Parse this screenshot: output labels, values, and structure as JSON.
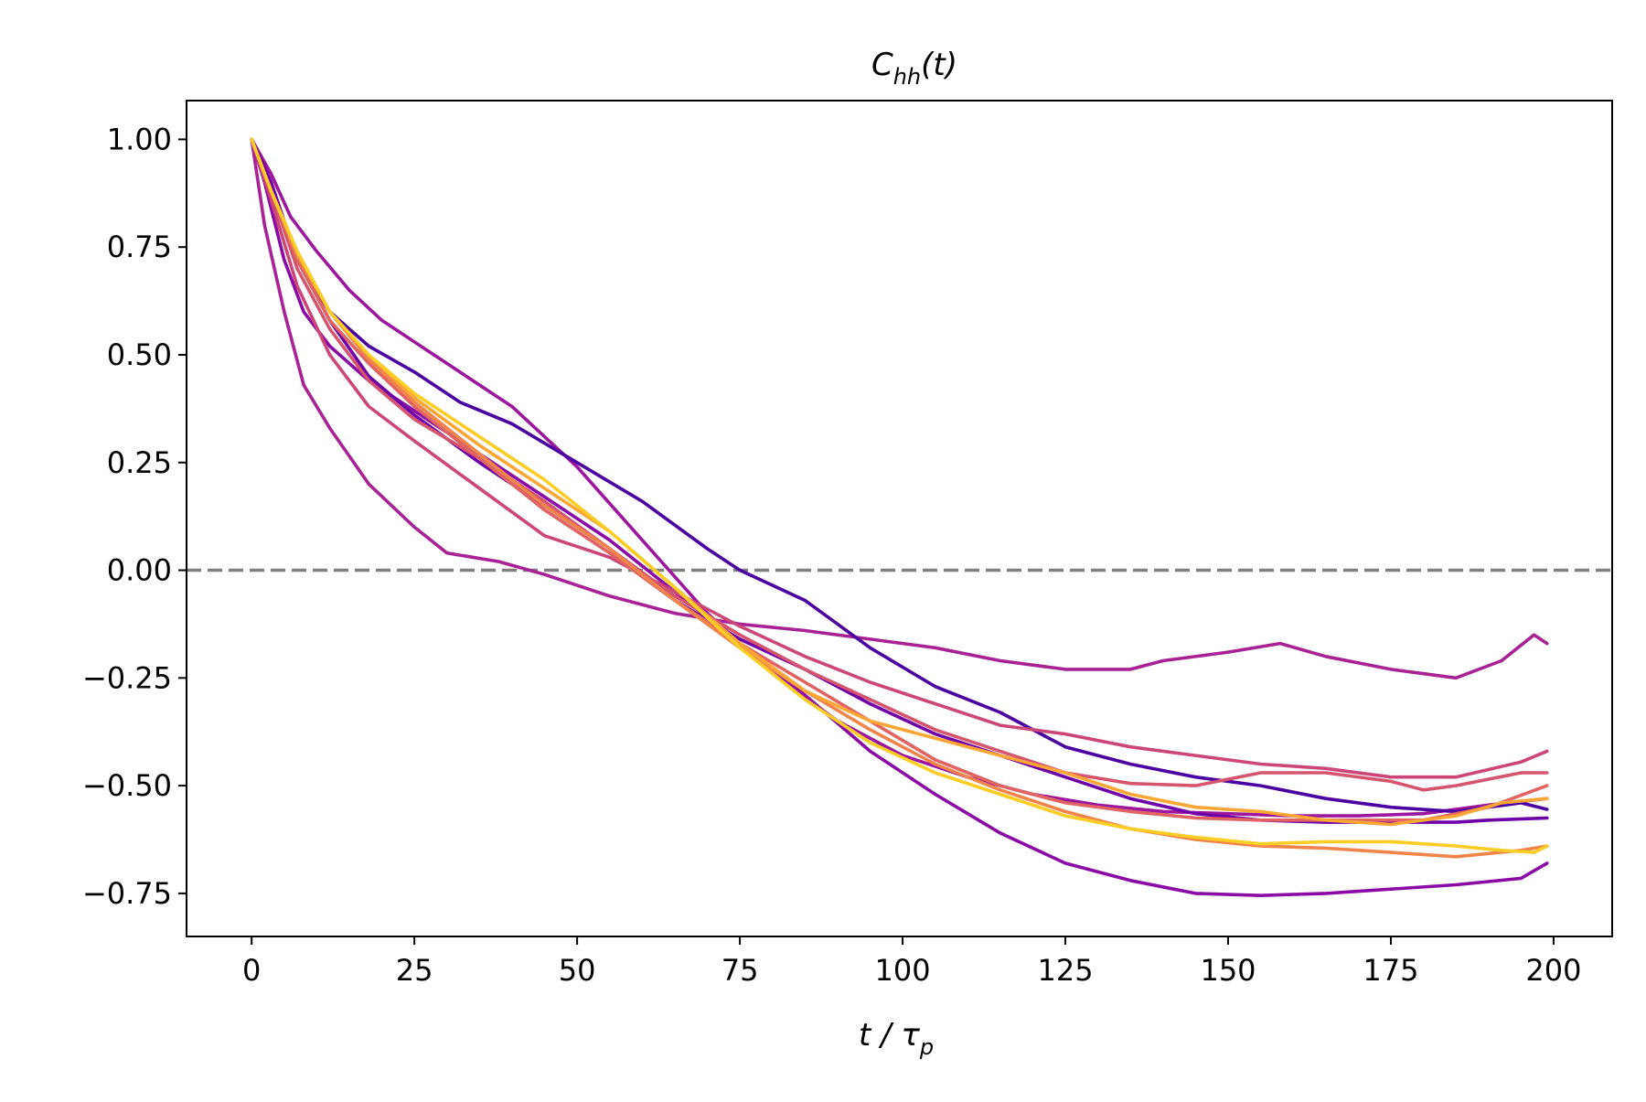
{
  "chart_data": {
    "type": "line",
    "title": {
      "main": "C",
      "sub": "hh",
      "rest": "(t)"
    },
    "xlabel": {
      "main": "t / τ",
      "sub": "p"
    },
    "ylabel": "",
    "xlim": [
      -10,
      209
    ],
    "ylim": [
      -0.85,
      1.09
    ],
    "xticks": [
      0,
      25,
      50,
      75,
      100,
      125,
      150,
      175,
      200
    ],
    "yticks": [
      1.0,
      0.75,
      0.5,
      0.25,
      0.0,
      -0.25,
      -0.5,
      -0.75
    ],
    "ytick_labels": [
      "1.00",
      "0.75",
      "0.50",
      "0.25",
      "0.00",
      "−0.25",
      "−0.50",
      "−0.75"
    ],
    "grid": false,
    "reference_line": {
      "y": 0.0,
      "style": "dashed",
      "color": "#808080"
    },
    "series": [
      {
        "color": "#8b0aa5",
        "points": [
          [
            0,
            1.0
          ],
          [
            2,
            0.9
          ],
          [
            5,
            0.72
          ],
          [
            8,
            0.6
          ],
          [
            12,
            0.52
          ],
          [
            18,
            0.44
          ],
          [
            25,
            0.37
          ],
          [
            35,
            0.27
          ],
          [
            45,
            0.17
          ],
          [
            55,
            0.07
          ],
          [
            65,
            -0.05
          ],
          [
            75,
            -0.17
          ],
          [
            85,
            -0.29
          ],
          [
            95,
            -0.42
          ],
          [
            105,
            -0.52
          ],
          [
            115,
            -0.61
          ],
          [
            125,
            -0.68
          ],
          [
            135,
            -0.72
          ],
          [
            145,
            -0.75
          ],
          [
            155,
            -0.755
          ],
          [
            165,
            -0.75
          ],
          [
            175,
            -0.74
          ],
          [
            185,
            -0.73
          ],
          [
            195,
            -0.715
          ],
          [
            199,
            -0.68
          ]
        ]
      },
      {
        "color": "#a82296",
        "points": [
          [
            0,
            1.0
          ],
          [
            2,
            0.8
          ],
          [
            5,
            0.6
          ],
          [
            8,
            0.43
          ],
          [
            12,
            0.33
          ],
          [
            18,
            0.2
          ],
          [
            25,
            0.1
          ],
          [
            30,
            0.04
          ],
          [
            38,
            0.02
          ],
          [
            45,
            -0.01
          ],
          [
            55,
            -0.06
          ],
          [
            65,
            -0.1
          ],
          [
            75,
            -0.125
          ],
          [
            85,
            -0.14
          ],
          [
            95,
            -0.16
          ],
          [
            105,
            -0.18
          ],
          [
            115,
            -0.21
          ],
          [
            125,
            -0.23
          ],
          [
            135,
            -0.23
          ],
          [
            140,
            -0.21
          ],
          [
            150,
            -0.19
          ],
          [
            158,
            -0.17
          ],
          [
            165,
            -0.2
          ],
          [
            175,
            -0.23
          ],
          [
            185,
            -0.25
          ],
          [
            192,
            -0.21
          ],
          [
            197,
            -0.15
          ],
          [
            199,
            -0.17
          ]
        ]
      },
      {
        "color": "#9c179e",
        "points": [
          [
            0,
            1.0
          ],
          [
            3,
            0.92
          ],
          [
            6,
            0.82
          ],
          [
            10,
            0.74
          ],
          [
            15,
            0.65
          ],
          [
            20,
            0.58
          ],
          [
            30,
            0.48
          ],
          [
            40,
            0.38
          ],
          [
            50,
            0.24
          ],
          [
            60,
            0.07
          ],
          [
            70,
            -0.1
          ],
          [
            80,
            -0.24
          ],
          [
            90,
            -0.35
          ],
          [
            100,
            -0.43
          ],
          [
            110,
            -0.48
          ],
          [
            120,
            -0.52
          ],
          [
            130,
            -0.545
          ],
          [
            140,
            -0.56
          ],
          [
            150,
            -0.565
          ],
          [
            160,
            -0.57
          ],
          [
            170,
            -0.57
          ],
          [
            180,
            -0.565
          ],
          [
            190,
            -0.545
          ],
          [
            199,
            -0.53
          ]
        ]
      },
      {
        "color": "#4c02a1",
        "points": [
          [
            0,
            1.0
          ],
          [
            3,
            0.9
          ],
          [
            7,
            0.72
          ],
          [
            12,
            0.6
          ],
          [
            18,
            0.52
          ],
          [
            25,
            0.46
          ],
          [
            32,
            0.39
          ],
          [
            40,
            0.34
          ],
          [
            50,
            0.25
          ],
          [
            60,
            0.16
          ],
          [
            70,
            0.05
          ],
          [
            75,
            0.0
          ],
          [
            85,
            -0.07
          ],
          [
            95,
            -0.18
          ],
          [
            105,
            -0.27
          ],
          [
            115,
            -0.33
          ],
          [
            125,
            -0.41
          ],
          [
            135,
            -0.45
          ],
          [
            145,
            -0.48
          ],
          [
            155,
            -0.5
          ],
          [
            165,
            -0.53
          ],
          [
            175,
            -0.55
          ],
          [
            185,
            -0.56
          ],
          [
            195,
            -0.54
          ],
          [
            199,
            -0.555
          ]
        ]
      },
      {
        "color": "#6e00a8",
        "points": [
          [
            0,
            1.0
          ],
          [
            3,
            0.9
          ],
          [
            7,
            0.72
          ],
          [
            12,
            0.58
          ],
          [
            18,
            0.45
          ],
          [
            25,
            0.36
          ],
          [
            35,
            0.25
          ],
          [
            45,
            0.15
          ],
          [
            55,
            0.05
          ],
          [
            65,
            -0.07
          ],
          [
            75,
            -0.16
          ],
          [
            85,
            -0.23
          ],
          [
            95,
            -0.31
          ],
          [
            105,
            -0.38
          ],
          [
            115,
            -0.43
          ],
          [
            125,
            -0.48
          ],
          [
            135,
            -0.53
          ],
          [
            145,
            -0.565
          ],
          [
            155,
            -0.58
          ],
          [
            165,
            -0.585
          ],
          [
            175,
            -0.585
          ],
          [
            185,
            -0.585
          ],
          [
            190,
            -0.58
          ],
          [
            199,
            -0.575
          ]
        ]
      },
      {
        "color": "#cc4778",
        "points": [
          [
            0,
            1.0
          ],
          [
            3,
            0.86
          ],
          [
            7,
            0.66
          ],
          [
            12,
            0.5
          ],
          [
            18,
            0.38
          ],
          [
            25,
            0.3
          ],
          [
            35,
            0.19
          ],
          [
            45,
            0.08
          ],
          [
            55,
            0.03
          ],
          [
            65,
            -0.05
          ],
          [
            75,
            -0.13
          ],
          [
            85,
            -0.2
          ],
          [
            95,
            -0.26
          ],
          [
            105,
            -0.31
          ],
          [
            115,
            -0.36
          ],
          [
            125,
            -0.38
          ],
          [
            135,
            -0.41
          ],
          [
            145,
            -0.43
          ],
          [
            155,
            -0.45
          ],
          [
            165,
            -0.46
          ],
          [
            175,
            -0.48
          ],
          [
            185,
            -0.48
          ],
          [
            195,
            -0.445
          ],
          [
            199,
            -0.42
          ]
        ]
      },
      {
        "color": "#d5546e",
        "points": [
          [
            0,
            1.0
          ],
          [
            3,
            0.88
          ],
          [
            7,
            0.7
          ],
          [
            12,
            0.56
          ],
          [
            18,
            0.44
          ],
          [
            25,
            0.35
          ],
          [
            35,
            0.26
          ],
          [
            45,
            0.16
          ],
          [
            55,
            0.05
          ],
          [
            65,
            -0.06
          ],
          [
            75,
            -0.15
          ],
          [
            85,
            -0.23
          ],
          [
            95,
            -0.3
          ],
          [
            105,
            -0.37
          ],
          [
            115,
            -0.42
          ],
          [
            125,
            -0.47
          ],
          [
            135,
            -0.495
          ],
          [
            145,
            -0.5
          ],
          [
            155,
            -0.47
          ],
          [
            165,
            -0.47
          ],
          [
            175,
            -0.49
          ],
          [
            180,
            -0.51
          ],
          [
            185,
            -0.5
          ],
          [
            195,
            -0.47
          ],
          [
            199,
            -0.47
          ]
        ]
      },
      {
        "color": "#e16462",
        "points": [
          [
            0,
            1.0
          ],
          [
            3,
            0.88
          ],
          [
            7,
            0.72
          ],
          [
            12,
            0.58
          ],
          [
            18,
            0.48
          ],
          [
            25,
            0.38
          ],
          [
            35,
            0.26
          ],
          [
            45,
            0.14
          ],
          [
            55,
            0.04
          ],
          [
            65,
            -0.07
          ],
          [
            75,
            -0.17
          ],
          [
            85,
            -0.26
          ],
          [
            95,
            -0.35
          ],
          [
            105,
            -0.44
          ],
          [
            115,
            -0.5
          ],
          [
            125,
            -0.54
          ],
          [
            135,
            -0.56
          ],
          [
            145,
            -0.575
          ],
          [
            155,
            -0.58
          ],
          [
            165,
            -0.58
          ],
          [
            175,
            -0.58
          ],
          [
            180,
            -0.58
          ],
          [
            190,
            -0.55
          ],
          [
            199,
            -0.5
          ]
        ]
      },
      {
        "color": "#f1844b",
        "points": [
          [
            0,
            1.0
          ],
          [
            3,
            0.88
          ],
          [
            7,
            0.73
          ],
          [
            12,
            0.6
          ],
          [
            18,
            0.49
          ],
          [
            25,
            0.39
          ],
          [
            35,
            0.27
          ],
          [
            45,
            0.15
          ],
          [
            55,
            0.05
          ],
          [
            65,
            -0.07
          ],
          [
            75,
            -0.18
          ],
          [
            85,
            -0.28
          ],
          [
            95,
            -0.37
          ],
          [
            105,
            -0.45
          ],
          [
            115,
            -0.51
          ],
          [
            125,
            -0.56
          ],
          [
            135,
            -0.6
          ],
          [
            145,
            -0.625
          ],
          [
            155,
            -0.64
          ],
          [
            165,
            -0.645
          ],
          [
            175,
            -0.655
          ],
          [
            185,
            -0.665
          ],
          [
            195,
            -0.65
          ],
          [
            199,
            -0.64
          ]
        ]
      },
      {
        "color": "#fca636",
        "points": [
          [
            0,
            1.0
          ],
          [
            3,
            0.88
          ],
          [
            7,
            0.74
          ],
          [
            12,
            0.6
          ],
          [
            18,
            0.5
          ],
          [
            25,
            0.4
          ],
          [
            35,
            0.29
          ],
          [
            45,
            0.19
          ],
          [
            55,
            0.09
          ],
          [
            65,
            -0.04
          ],
          [
            75,
            -0.17
          ],
          [
            85,
            -0.28
          ],
          [
            95,
            -0.35
          ],
          [
            105,
            -0.39
          ],
          [
            115,
            -0.43
          ],
          [
            125,
            -0.47
          ],
          [
            135,
            -0.52
          ],
          [
            145,
            -0.55
          ],
          [
            155,
            -0.56
          ],
          [
            165,
            -0.58
          ],
          [
            175,
            -0.59
          ],
          [
            185,
            -0.57
          ],
          [
            192,
            -0.54
          ],
          [
            199,
            -0.53
          ]
        ]
      },
      {
        "color": "#fccd25",
        "points": [
          [
            0,
            1.0
          ],
          [
            3,
            0.88
          ],
          [
            7,
            0.74
          ],
          [
            12,
            0.6
          ],
          [
            18,
            0.5
          ],
          [
            25,
            0.41
          ],
          [
            35,
            0.31
          ],
          [
            45,
            0.21
          ],
          [
            55,
            0.09
          ],
          [
            65,
            -0.04
          ],
          [
            75,
            -0.18
          ],
          [
            85,
            -0.3
          ],
          [
            95,
            -0.4
          ],
          [
            105,
            -0.47
          ],
          [
            115,
            -0.52
          ],
          [
            125,
            -0.57
          ],
          [
            135,
            -0.6
          ],
          [
            145,
            -0.62
          ],
          [
            155,
            -0.635
          ],
          [
            165,
            -0.63
          ],
          [
            175,
            -0.63
          ],
          [
            185,
            -0.64
          ],
          [
            192,
            -0.65
          ],
          [
            197,
            -0.655
          ],
          [
            199,
            -0.64
          ]
        ]
      }
    ]
  }
}
